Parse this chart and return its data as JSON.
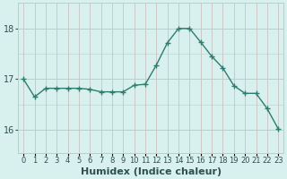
{
  "x": [
    0,
    1,
    2,
    3,
    4,
    5,
    6,
    7,
    8,
    9,
    10,
    11,
    12,
    13,
    14,
    15,
    16,
    17,
    18,
    19,
    20,
    21,
    22,
    23
  ],
  "y": [
    17.0,
    16.65,
    16.82,
    16.82,
    16.82,
    16.82,
    16.8,
    16.75,
    16.75,
    16.75,
    16.88,
    16.9,
    17.28,
    17.72,
    18.0,
    18.0,
    17.73,
    17.45,
    17.22,
    16.87,
    16.72,
    16.72,
    16.42,
    16.02
  ],
  "line_color": "#2e7d6e",
  "marker": "+",
  "marker_size": 4,
  "marker_lw": 1.0,
  "line_width": 1.0,
  "bg_color": "#d8f0ee",
  "vgrid_color": "#c8b8b8",
  "hgrid_color": "#b8d0cc",
  "xlabel": "Humidex (Indice chaleur)",
  "xlabel_fontsize": 8,
  "xlabel_color": "#2e5050",
  "tick_fontsize": 6,
  "tick_color": "#2e5050",
  "ylim": [
    15.55,
    18.5
  ],
  "yticks": [
    16,
    17,
    18
  ],
  "xlim": [
    -0.5,
    23.5
  ],
  "fig_width": 3.2,
  "fig_height": 2.0,
  "dpi": 100
}
